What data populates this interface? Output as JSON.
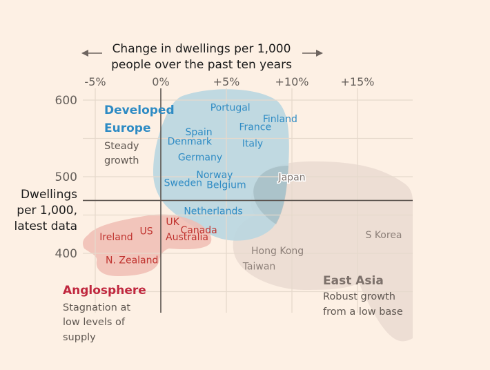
{
  "chart_data": {
    "type": "scatter",
    "title": "",
    "xlabel": "Change in dwellings per 1,000 people over the past ten years",
    "xlabel_lines": [
      "Change in dwellings per 1,000",
      "people over the past ten years"
    ],
    "ylabel": "Dwellings per 1,000, latest data",
    "ylabel_lines": [
      "Dwellings",
      "per 1,000,",
      "latest data"
    ],
    "xlim": [
      -5,
      19
    ],
    "ylim": [
      322,
      610
    ],
    "x_ticks": [
      {
        "value": -5,
        "label": "-5%"
      },
      {
        "value": 0,
        "label": "0%"
      },
      {
        "value": 5,
        "label": "+5%"
      },
      {
        "value": 10,
        "label": "+10%"
      },
      {
        "value": 15,
        "label": "+15%"
      }
    ],
    "y_ticks": [
      {
        "value": 600,
        "label": "600"
      },
      {
        "value": 500,
        "label": "500"
      },
      {
        "value": 400,
        "label": "400"
      }
    ],
    "y_gridlines": [
      600,
      550,
      500,
      450,
      400,
      350
    ],
    "reference_lines": {
      "x": 0,
      "y": 469
    },
    "grid": true,
    "groups": [
      {
        "name": "Developed Europe",
        "title_lines": [
          "Developed",
          "Europe"
        ],
        "subtitle_lines": [
          "Steady",
          "growth"
        ],
        "color": "#2e8bc4",
        "fill": "#b9d6e0",
        "points": [
          {
            "label": "Portugal",
            "x": 5.3,
            "y": 586
          },
          {
            "label": "Finland",
            "x": 9.1,
            "y": 571
          },
          {
            "label": "France",
            "x": 7.2,
            "y": 561
          },
          {
            "label": "Spain",
            "x": 2.9,
            "y": 554
          },
          {
            "label": "Denmark",
            "x": 2.2,
            "y": 542
          },
          {
            "label": "Italy",
            "x": 7.0,
            "y": 539
          },
          {
            "label": "Germany",
            "x": 3.0,
            "y": 521
          },
          {
            "label": "Norway",
            "x": 4.1,
            "y": 498
          },
          {
            "label": "Sweden",
            "x": 1.7,
            "y": 488
          },
          {
            "label": "Belgium",
            "x": 5.0,
            "y": 485
          },
          {
            "label": "Netherlands",
            "x": 4.0,
            "y": 451
          }
        ]
      },
      {
        "name": "Anglosphere",
        "title_lines": [
          "Anglosphere"
        ],
        "subtitle_lines": [
          "Stagnation at",
          "low levels of",
          "supply"
        ],
        "color": "#c0332f",
        "fill": "#f0bdb4",
        "title_color": "#c0283f",
        "points": [
          {
            "label": "UK",
            "x": 0.9,
            "y": 437
          },
          {
            "label": "Canada",
            "x": 2.9,
            "y": 426
          },
          {
            "label": "US",
            "x": -1.1,
            "y": 425
          },
          {
            "label": "Ireland",
            "x": -3.4,
            "y": 417
          },
          {
            "label": "Australia",
            "x": 2.0,
            "y": 417
          },
          {
            "label": "N. Zealand",
            "x": -2.2,
            "y": 387
          }
        ]
      },
      {
        "name": "East Asia",
        "title_lines": [
          "East Asia"
        ],
        "subtitle_lines": [
          "Robust growth",
          "from a low base"
        ],
        "color": "#8c7f78",
        "fill": "#eadbd1",
        "points": [
          {
            "label": "Japan",
            "x": 10.0,
            "y": 495
          },
          {
            "label": "S Korea",
            "x": 17.0,
            "y": 420
          },
          {
            "label": "Hong Kong",
            "x": 8.9,
            "y": 399
          },
          {
            "label": "Taiwan",
            "x": 7.5,
            "y": 379
          }
        ]
      }
    ]
  },
  "colors": {
    "background": "#fdf0e4",
    "grid": "#e6d9cc",
    "axis_ref": "#5a524d",
    "tick_text": "#66605b",
    "axis_title": "#1a1a1a",
    "subtitle": "#5f5751"
  }
}
